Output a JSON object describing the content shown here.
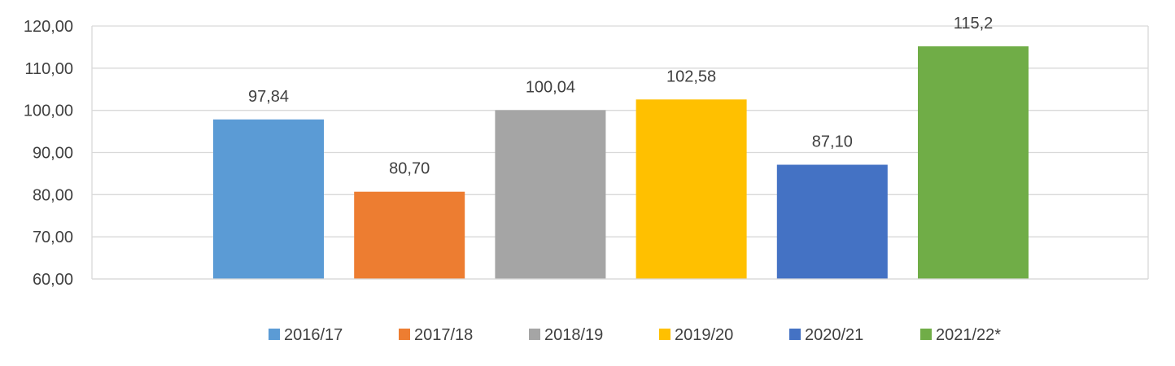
{
  "chart_data": {
    "type": "bar",
    "series": [
      {
        "name": "2016/17",
        "value": 97.84,
        "label": "97,84",
        "color": "#5B9BD5"
      },
      {
        "name": "2017/18",
        "value": 80.7,
        "label": "80,70",
        "color": "#ED7D31"
      },
      {
        "name": "2018/19",
        "value": 100.04,
        "label": "100,04",
        "color": "#A5A5A5"
      },
      {
        "name": "2019/20",
        "value": 102.58,
        "label": "102,58",
        "color": "#FFC000"
      },
      {
        "name": "2020/21",
        "value": 87.1,
        "label": "87,10",
        "color": "#4472C4"
      },
      {
        "name": "2021/22*",
        "value": 115.2,
        "label": "115,2",
        "color": "#70AD47"
      }
    ],
    "ylim": [
      60,
      120
    ],
    "yticks": [
      {
        "value": 60,
        "label": "60,00"
      },
      {
        "value": 70,
        "label": "70,00"
      },
      {
        "value": 80,
        "label": "80,00"
      },
      {
        "value": 90,
        "label": "90,00"
      },
      {
        "value": 100,
        "label": "100,00"
      },
      {
        "value": 110,
        "label": "110,00"
      },
      {
        "value": 120,
        "label": "120,00"
      }
    ],
    "grid": true,
    "legend_position": "bottom",
    "title": "",
    "xlabel": "",
    "ylabel": ""
  }
}
